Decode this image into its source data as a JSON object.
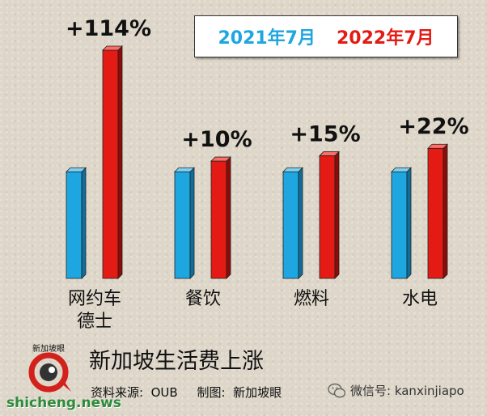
{
  "legend": {
    "series1": "2021年7月",
    "series2": "2022年7月"
  },
  "footer": {
    "title": "新加坡生活费上涨",
    "source": "资料来源:  OUB     制图:  新加坡眼",
    "logo_text": "新加坡眼",
    "site": "shicheng.news",
    "wechat": "微信号: kanxinjiapo"
  },
  "colors": {
    "series1": "#1ea6e0",
    "series2": "#e31b14",
    "background": "#ddd6c9"
  },
  "chart_data": {
    "type": "bar",
    "categories": [
      "网约车\n德士",
      "餐饮",
      "燃料",
      "水电"
    ],
    "series": [
      {
        "name": "2021年7月",
        "values": [
          100,
          100,
          100,
          100
        ]
      },
      {
        "name": "2022年7月",
        "values": [
          214,
          110,
          115,
          122
        ]
      }
    ],
    "annotations": [
      "+114%",
      "+10%",
      "+15%",
      "+22%"
    ],
    "ylim": [
      0,
      214
    ],
    "grid": false,
    "legend_position": "top-right"
  }
}
